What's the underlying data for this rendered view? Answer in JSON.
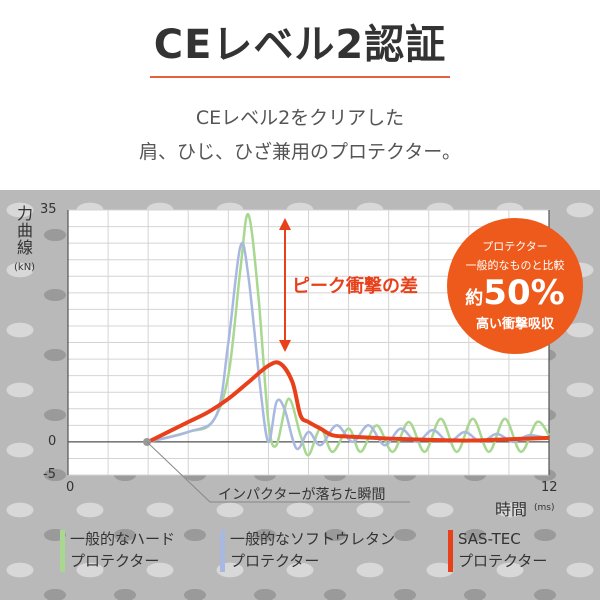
{
  "header": {
    "title": "CEレベル2認証",
    "subtitle_lines": [
      "CEレベル2をクリアした",
      "肩、ひじ、ひざ兼用のプロテクター。"
    ]
  },
  "colors": {
    "accent": "#e8603a",
    "hard": "#a8d890",
    "soft": "#a8b8e0",
    "sastec": "#e8401a"
  },
  "badge": {
    "line1": "プロテクター",
    "line2": "一般的なものと比較",
    "prefix": "約",
    "value": "50%",
    "line3": "高い衝撃吸収"
  },
  "annotations": {
    "peak_diff": "ピーク衝撃の差",
    "impact_moment": "インパクターが落ちた瞬間"
  },
  "chart_data": {
    "type": "line",
    "ylabel": "力曲線",
    "yunit": "(kN)",
    "xlabel": "時間",
    "xunit": "(ms)",
    "xlim": [
      0,
      12
    ],
    "ylim": [
      -5,
      35
    ],
    "xticks": [
      "0",
      "12"
    ],
    "yticks": [
      "35",
      "0",
      "-5"
    ],
    "grid": true,
    "legend_placement": "bottom",
    "series": [
      {
        "name": "一般的なハード プロテクター",
        "label_lines": [
          "一般的なハード",
          "プロテクター"
        ],
        "color": "#a8d890",
        "points": [
          [
            2,
            0
          ],
          [
            3,
            1.5
          ],
          [
            3.6,
            3
          ],
          [
            4,
            10
          ],
          [
            4.3,
            26
          ],
          [
            4.5,
            34.3
          ],
          [
            4.75,
            22
          ],
          [
            5,
            3
          ],
          [
            5.2,
            -0.5
          ],
          [
            5.5,
            6.5
          ],
          [
            5.8,
            1
          ],
          [
            6,
            -2
          ],
          [
            6.3,
            2
          ],
          [
            6.6,
            -1.5
          ],
          [
            7,
            2
          ],
          [
            7.3,
            -1.5
          ],
          [
            7.7,
            2.5
          ],
          [
            8.1,
            -1.5
          ],
          [
            8.5,
            3
          ],
          [
            8.9,
            -1.5
          ],
          [
            9.3,
            3.5
          ],
          [
            9.7,
            -1.5
          ],
          [
            10.1,
            3.5
          ],
          [
            10.5,
            -1.5
          ],
          [
            10.9,
            3.5
          ],
          [
            11.3,
            -1.5
          ],
          [
            11.7,
            3
          ],
          [
            12,
            1
          ]
        ]
      },
      {
        "name": "一般的なソフトウレタン プロテクター",
        "label_lines": [
          "一般的なソフトウレタン",
          "プロテクター"
        ],
        "color": "#a8b8e0",
        "points": [
          [
            2,
            0
          ],
          [
            3,
            1.5
          ],
          [
            3.7,
            4
          ],
          [
            4,
            15
          ],
          [
            4.3,
            29.5
          ],
          [
            4.5,
            25
          ],
          [
            4.8,
            8
          ],
          [
            5,
            0
          ],
          [
            5.2,
            6
          ],
          [
            5.4,
            5
          ],
          [
            5.7,
            -1
          ],
          [
            6,
            1.5
          ],
          [
            6.3,
            -0.5
          ],
          [
            6.7,
            2.5
          ],
          [
            7.1,
            0
          ],
          [
            7.5,
            2.5
          ],
          [
            7.9,
            -0.5
          ],
          [
            8.3,
            2
          ],
          [
            8.7,
            0
          ],
          [
            9.1,
            1.8
          ],
          [
            9.5,
            0
          ],
          [
            9.9,
            1.5
          ],
          [
            10.3,
            0
          ],
          [
            10.7,
            1.2
          ],
          [
            11.1,
            0
          ],
          [
            11.5,
            1
          ],
          [
            12,
            0.5
          ]
        ]
      },
      {
        "name": "SAS-TEC プロテクター",
        "label_lines": [
          "SAS-TEC",
          "プロテクター"
        ],
        "color": "#e8401a",
        "points": [
          [
            2,
            0
          ],
          [
            2.5,
            1.5
          ],
          [
            3,
            3
          ],
          [
            3.5,
            4.5
          ],
          [
            4,
            6.5
          ],
          [
            4.5,
            9
          ],
          [
            5,
            11.5
          ],
          [
            5.3,
            11.8
          ],
          [
            5.6,
            9
          ],
          [
            5.8,
            4
          ],
          [
            6,
            3
          ],
          [
            6.3,
            2
          ],
          [
            6.6,
            1
          ],
          [
            7,
            0.8
          ],
          [
            8,
            0.5
          ],
          [
            9,
            0.3
          ],
          [
            10,
            0.2
          ],
          [
            11,
            0.4
          ],
          [
            12,
            0.6
          ]
        ]
      }
    ]
  }
}
